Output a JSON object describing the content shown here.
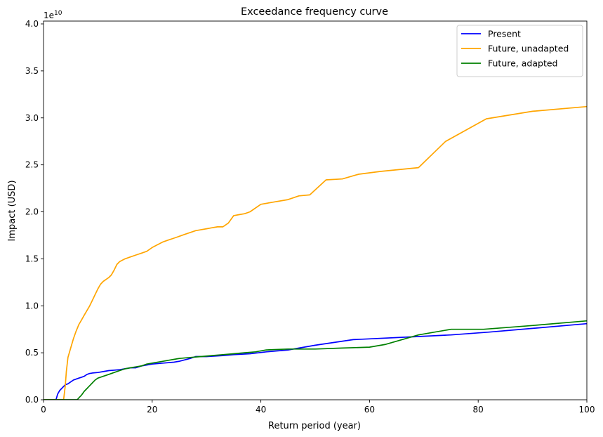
{
  "chart_data": {
    "type": "line",
    "title": "Exceedance frequency curve",
    "xlabel": "Return period (year)",
    "ylabel": "Impact (USD)",
    "y_offset_text": "1e10",
    "xlim": [
      0,
      100
    ],
    "ylim": [
      0,
      4.03
    ],
    "x_ticks": [
      0,
      20,
      40,
      60,
      80,
      100
    ],
    "x_tick_labels": [
      "0",
      "20",
      "40",
      "60",
      "80",
      "100"
    ],
    "y_ticks": [
      0,
      0.5,
      1.0,
      1.5,
      2.0,
      2.5,
      3.0,
      3.5,
      4.0
    ],
    "y_tick_labels": [
      "0.0",
      "0.5",
      "1.0",
      "1.5",
      "2.0",
      "2.5",
      "3.0",
      "3.5",
      "4.0"
    ],
    "grid": false,
    "legend_position": "top-right",
    "series": [
      {
        "name": "Present",
        "color": "#0000ff",
        "x": [
          0,
          2.3,
          2.6,
          3.0,
          3.5,
          4.0,
          4.5,
          5.0,
          5.5,
          6.0,
          6.5,
          7.0,
          7.5,
          8.0,
          8.5,
          9.0,
          10.0,
          11.0,
          12.0,
          13.0,
          14.0,
          15.0,
          16.0,
          17.0,
          18.0,
          19.0,
          20.0,
          22.0,
          24.0,
          25.0,
          27.0,
          28.0,
          30.0,
          33.0,
          35.0,
          38.0,
          41.0,
          45.0,
          50.0,
          57.0,
          68.0,
          75.0,
          82.0,
          90.0,
          100.0
        ],
        "y": [
          0,
          0,
          0.06,
          0.1,
          0.13,
          0.16,
          0.17,
          0.19,
          0.21,
          0.22,
          0.23,
          0.24,
          0.25,
          0.27,
          0.28,
          0.285,
          0.29,
          0.3,
          0.31,
          0.315,
          0.32,
          0.33,
          0.34,
          0.34,
          0.36,
          0.37,
          0.38,
          0.39,
          0.4,
          0.41,
          0.44,
          0.46,
          0.46,
          0.47,
          0.48,
          0.49,
          0.51,
          0.53,
          0.58,
          0.64,
          0.67,
          0.69,
          0.72,
          0.76,
          0.81
        ]
      },
      {
        "name": "Future, unadapted",
        "color": "#ffa500",
        "x": [
          0,
          3.7,
          4.0,
          4.2,
          4.5,
          5.0,
          5.5,
          6.0,
          6.5,
          7.0,
          7.5,
          8.0,
          8.5,
          9.0,
          9.5,
          10.0,
          10.5,
          11.0,
          11.5,
          12.0,
          12.5,
          13.0,
          13.5,
          14.0,
          15.0,
          16.0,
          17.0,
          18.0,
          19.0,
          20.0,
          21.0,
          22.0,
          23.0,
          24.0,
          25.0,
          26.0,
          27.0,
          28.0,
          29.0,
          30.0,
          31.0,
          32.0,
          33.0,
          34.0,
          35.0,
          36.0,
          37.0,
          38.0,
          40.0,
          42.0,
          45.0,
          47.0,
          49.0,
          52.0,
          55.0,
          58.0,
          62.0,
          69.0,
          74.0,
          81.5,
          90.0,
          100.0
        ],
        "y": [
          0,
          0,
          0.15,
          0.3,
          0.45,
          0.55,
          0.65,
          0.73,
          0.8,
          0.85,
          0.9,
          0.95,
          1.0,
          1.06,
          1.12,
          1.18,
          1.23,
          1.26,
          1.28,
          1.3,
          1.33,
          1.38,
          1.44,
          1.47,
          1.5,
          1.52,
          1.54,
          1.56,
          1.58,
          1.62,
          1.65,
          1.68,
          1.7,
          1.72,
          1.74,
          1.76,
          1.78,
          1.8,
          1.81,
          1.82,
          1.83,
          1.84,
          1.84,
          1.88,
          1.96,
          1.97,
          1.98,
          2.0,
          2.08,
          2.1,
          2.13,
          2.17,
          2.18,
          2.34,
          2.35,
          2.4,
          2.43,
          2.47,
          2.75,
          2.99,
          3.07,
          3.12
        ]
      },
      {
        "name": "Future, adapted",
        "color": "#008000",
        "x": [
          0,
          6.2,
          6.5,
          7.0,
          7.5,
          8.0,
          8.5,
          9.0,
          9.5,
          10.0,
          11.0,
          12.0,
          13.0,
          14.0,
          15.0,
          16.0,
          17.0,
          18.0,
          19.0,
          20.0,
          22.0,
          23.0,
          24.0,
          25.0,
          27.0,
          29.0,
          31.0,
          33.0,
          35.0,
          37.0,
          39.0,
          41.0,
          45.0,
          50.0,
          55.0,
          60.0,
          63.0,
          69.0,
          75.0,
          81.0,
          90.0,
          100.0
        ],
        "y": [
          0,
          0,
          0.02,
          0.05,
          0.09,
          0.12,
          0.15,
          0.18,
          0.21,
          0.23,
          0.25,
          0.27,
          0.29,
          0.31,
          0.33,
          0.34,
          0.35,
          0.36,
          0.38,
          0.39,
          0.41,
          0.42,
          0.43,
          0.44,
          0.45,
          0.46,
          0.47,
          0.48,
          0.49,
          0.5,
          0.51,
          0.53,
          0.54,
          0.54,
          0.55,
          0.56,
          0.59,
          0.69,
          0.75,
          0.75,
          0.79,
          0.84
        ]
      }
    ]
  }
}
